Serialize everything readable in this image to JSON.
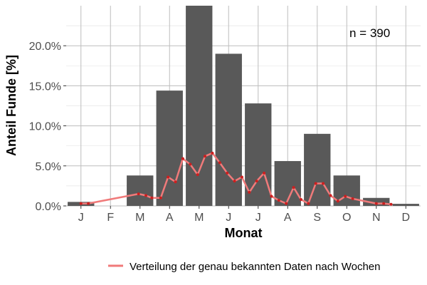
{
  "chart_data": {
    "type": "bar",
    "categories": [
      "J",
      "F",
      "M",
      "A",
      "M",
      "J",
      "J",
      "A",
      "S",
      "O",
      "N",
      "D"
    ],
    "values": [
      0.5,
      0.0,
      3.8,
      14.4,
      25.0,
      19.0,
      12.8,
      5.6,
      9.0,
      3.8,
      1.0,
      0.26
    ],
    "xlabel": "Monat",
    "ylabel": "Anteil Funde [%]",
    "ylim": [
      0,
      25
    ],
    "yticks": [
      0,
      5,
      10,
      15,
      20
    ],
    "ytick_labels": [
      "0.0%",
      "5.0%",
      "10.0%",
      "15.0%",
      "20.0%"
    ],
    "grid": true,
    "annotation": "n = 390",
    "bar_color": "#595959",
    "line_series": {
      "name": "Verteilung der genau bekannten Daten nach Wochen",
      "color": "#f07a7a",
      "point_color": "#cc1f1f",
      "x_month": [
        0.0,
        0.25,
        1.95,
        2.2,
        2.4,
        2.7,
        2.95,
        3.2,
        3.45,
        3.7,
        3.95,
        4.2,
        4.45,
        4.7,
        4.95,
        5.2,
        5.45,
        5.7,
        5.95,
        6.2,
        6.45,
        6.7,
        6.95,
        7.2,
        7.45,
        7.7,
        7.95,
        8.2,
        8.45,
        8.7,
        8.95,
        9.2,
        10.0,
        10.25,
        10.5
      ],
      "y": [
        0.3,
        0.3,
        1.5,
        1.3,
        1.0,
        1.0,
        3.6,
        3.0,
        5.9,
        5.2,
        3.9,
        6.2,
        6.6,
        5.4,
        4.1,
        3.1,
        3.6,
        1.7,
        3.1,
        4.1,
        1.2,
        0.7,
        0.3,
        2.3,
        0.8,
        0.3,
        2.8,
        2.8,
        1.3,
        0.6,
        1.2,
        0.9,
        0.3,
        0.3,
        0.2
      ]
    }
  }
}
